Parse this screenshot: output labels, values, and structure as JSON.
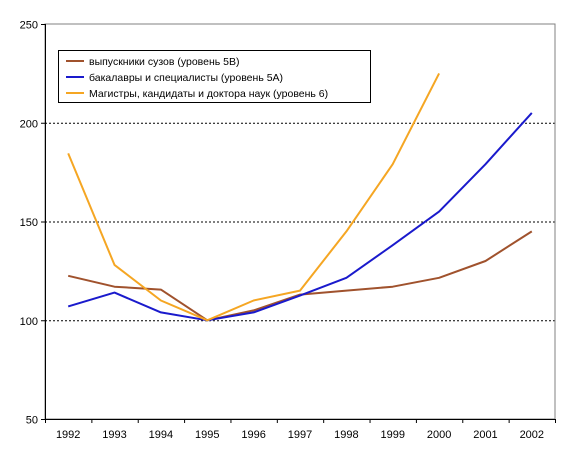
{
  "chart_data": {
    "type": "line",
    "x": [
      "1992",
      "1993",
      "1994",
      "1995",
      "1996",
      "1997",
      "1998",
      "1999",
      "2000",
      "2001",
      "2002"
    ],
    "ylim": [
      50,
      250
    ],
    "yticks": [
      50,
      100,
      150,
      200,
      250
    ],
    "grid": true,
    "legend_position": "top-left",
    "series": [
      {
        "name": "выпускники сузов (уровень 5В)",
        "color": "#a0522d",
        "values": [
          122.5,
          117,
          115.5,
          100,
          105,
          113,
          115,
          117,
          121.5,
          130,
          145
        ]
      },
      {
        "name": "бакалавры и специалисты (уровень 5А)",
        "color": "#1a1acc",
        "values": [
          107,
          114,
          104,
          100,
          104,
          112.5,
          121.5,
          138,
          155,
          179,
          205
        ]
      },
      {
        "name": "Магистры, кандидаты и доктора наук (уровень 6)",
        "color": "#f5a623",
        "values": [
          184.5,
          128,
          110,
          100,
          110,
          115,
          145,
          179,
          225,
          null,
          null
        ]
      }
    ]
  }
}
